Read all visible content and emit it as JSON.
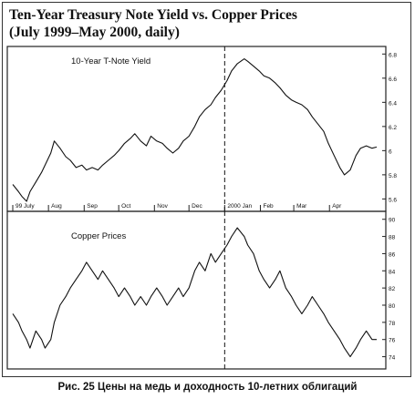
{
  "header": {
    "title": "Ten-Year Treasury Note Yield vs. Copper Prices",
    "subtitle": "(July 1999–May 2000, daily)"
  },
  "caption": "Рис. 25 Цены на медь и доходность 10-летних облигаций",
  "chart_data": [
    {
      "type": "line",
      "title": "",
      "series": [
        {
          "name": "10-Year T-Note Yield",
          "x": [
            "1999-07-01",
            "1999-07-06",
            "1999-07-09",
            "1999-07-13",
            "1999-07-16",
            "1999-07-21",
            "1999-07-26",
            "1999-07-29",
            "1999-08-03",
            "1999-08-06",
            "1999-08-11",
            "1999-08-16",
            "1999-08-20",
            "1999-08-25",
            "1999-08-30",
            "1999-09-03",
            "1999-09-08",
            "1999-09-13",
            "1999-09-17",
            "1999-09-22",
            "1999-09-27",
            "1999-10-01",
            "1999-10-06",
            "1999-10-11",
            "1999-10-15",
            "1999-10-20",
            "1999-10-25",
            "1999-10-29",
            "1999-11-03",
            "1999-11-08",
            "1999-11-12",
            "1999-11-17",
            "1999-11-22",
            "1999-11-26",
            "1999-12-01",
            "1999-12-06",
            "1999-12-10",
            "1999-12-15",
            "1999-12-20",
            "1999-12-24",
            "1999-12-29",
            "2000-01-03",
            "2000-01-07",
            "2000-01-12",
            "2000-01-18",
            "2000-01-21",
            "2000-01-26",
            "2000-01-31",
            "2000-02-04",
            "2000-02-09",
            "2000-02-14",
            "2000-02-18",
            "2000-02-23",
            "2000-02-28",
            "2000-03-03",
            "2000-03-08",
            "2000-03-13",
            "2000-03-17",
            "2000-03-22",
            "2000-03-27",
            "2000-03-31",
            "2000-04-05",
            "2000-04-10",
            "2000-04-14",
            "2000-04-19",
            "2000-04-24",
            "2000-04-28",
            "2000-05-03",
            "2000-05-08",
            "2000-05-12"
          ],
          "values": [
            5.72,
            5.66,
            5.62,
            5.58,
            5.66,
            5.74,
            5.82,
            5.88,
            5.98,
            6.08,
            6.02,
            5.95,
            5.92,
            5.86,
            5.88,
            5.84,
            5.86,
            5.84,
            5.88,
            5.92,
            5.96,
            6.0,
            6.06,
            6.1,
            6.14,
            6.08,
            6.04,
            6.12,
            6.08,
            6.06,
            6.02,
            5.98,
            6.02,
            6.08,
            6.12,
            6.2,
            6.28,
            6.34,
            6.38,
            6.44,
            6.5,
            6.58,
            6.66,
            6.72,
            6.76,
            6.74,
            6.7,
            6.66,
            6.62,
            6.6,
            6.56,
            6.52,
            6.46,
            6.42,
            6.4,
            6.38,
            6.34,
            6.28,
            6.22,
            6.16,
            6.06,
            5.96,
            5.86,
            5.8,
            5.84,
            5.96,
            6.02,
            6.04,
            6.02,
            6.03
          ]
        }
      ],
      "ylim": [
        5.52,
        6.84
      ],
      "y_ticks": [
        "5.6",
        "5.8",
        "6",
        "6.2",
        "6.4",
        "6.6",
        "6.8"
      ],
      "x_tick_labels": [
        "99 July",
        "Aug",
        "Sep",
        "Oct",
        "Nov",
        "Dec",
        "2000 Jan",
        "Feb",
        "Mar",
        "Apr"
      ],
      "x_tick_dates": [
        "1999-07-01",
        "1999-08-01",
        "1999-09-01",
        "1999-10-01",
        "1999-11-01",
        "1999-12-01",
        "2000-01-01",
        "2000-02-01",
        "2000-03-01",
        "2000-04-01"
      ],
      "reference_line": "2000-01-01",
      "grid": false
    },
    {
      "type": "line",
      "title": "",
      "series": [
        {
          "name": "Copper Prices",
          "x": [
            "1999-07-01",
            "1999-07-06",
            "1999-07-09",
            "1999-07-13",
            "1999-07-16",
            "1999-07-21",
            "1999-07-26",
            "1999-07-29",
            "1999-08-03",
            "1999-08-06",
            "1999-08-11",
            "1999-08-16",
            "1999-08-20",
            "1999-08-25",
            "1999-08-30",
            "1999-09-03",
            "1999-09-08",
            "1999-09-13",
            "1999-09-17",
            "1999-09-22",
            "1999-09-27",
            "1999-10-01",
            "1999-10-06",
            "1999-10-11",
            "1999-10-15",
            "1999-10-20",
            "1999-10-25",
            "1999-10-29",
            "1999-11-03",
            "1999-11-08",
            "1999-11-12",
            "1999-11-17",
            "1999-11-22",
            "1999-11-26",
            "1999-12-01",
            "1999-12-06",
            "1999-12-10",
            "1999-12-15",
            "1999-12-20",
            "1999-12-24",
            "1999-12-29",
            "2000-01-03",
            "2000-01-07",
            "2000-01-12",
            "2000-01-18",
            "2000-01-21",
            "2000-01-26",
            "2000-01-31",
            "2000-02-04",
            "2000-02-09",
            "2000-02-14",
            "2000-02-18",
            "2000-02-23",
            "2000-02-28",
            "2000-03-03",
            "2000-03-08",
            "2000-03-13",
            "2000-03-17",
            "2000-03-22",
            "2000-03-27",
            "2000-03-31",
            "2000-04-05",
            "2000-04-10",
            "2000-04-14",
            "2000-04-19",
            "2000-04-24",
            "2000-04-28",
            "2000-05-03",
            "2000-05-08",
            "2000-05-12"
          ],
          "values": [
            79,
            78,
            77,
            76,
            75,
            77,
            76,
            75,
            76,
            78,
            80,
            81,
            82,
            83,
            84,
            85,
            84,
            83,
            84,
            83,
            82,
            81,
            82,
            81,
            80,
            81,
            80,
            81,
            82,
            81,
            80,
            81,
            82,
            81,
            82,
            84,
            85,
            84,
            86,
            85,
            86,
            87,
            88,
            89,
            88,
            87,
            86,
            84,
            83,
            82,
            83,
            84,
            82,
            81,
            80,
            79,
            80,
            81,
            80,
            79,
            78,
            77,
            76,
            75,
            74,
            75,
            76,
            77,
            76,
            76
          ]
        }
      ],
      "ylim": [
        73,
        90.5
      ],
      "y_ticks": [
        "74",
        "76",
        "78",
        "80",
        "82",
        "84",
        "86",
        "88",
        "90"
      ],
      "reference_line": "2000-01-01",
      "grid": false
    }
  ]
}
